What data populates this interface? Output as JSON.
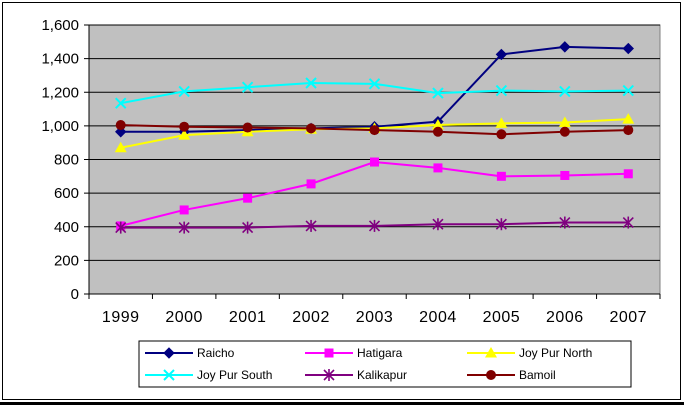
{
  "chart_data": {
    "type": "line",
    "title": "",
    "xlabel": "",
    "ylabel": "",
    "categories": [
      "1999",
      "2000",
      "2001",
      "2002",
      "2003",
      "2004",
      "2005",
      "2006",
      "2007"
    ],
    "ylim": [
      0,
      1600
    ],
    "yticks": [
      0,
      200,
      400,
      600,
      800,
      1000,
      1200,
      1400,
      1600
    ],
    "ytick_labels": [
      "0",
      "200",
      "400",
      "600",
      "800",
      "1,000",
      "1,200",
      "1,400",
      "1,600"
    ],
    "grid": "horizontal",
    "plot_background": "#C0C0C0",
    "legend_position": "bottom",
    "series": [
      {
        "name": "Raicho",
        "color": "#000080",
        "marker": "diamond",
        "values": [
          965,
          965,
          975,
          985,
          995,
          1025,
          1425,
          1470,
          1460
        ]
      },
      {
        "name": "Hatigara",
        "color": "#FF00FF",
        "marker": "square",
        "values": [
          405,
          500,
          570,
          655,
          785,
          750,
          700,
          705,
          715
        ]
      },
      {
        "name": "Joy Pur North",
        "color": "#FFFF00",
        "marker": "triangle",
        "values": [
          870,
          945,
          965,
          980,
          985,
          1005,
          1015,
          1020,
          1040
        ]
      },
      {
        "name": "Joy Pur South",
        "color": "#00FFFF",
        "marker": "x",
        "values": [
          1135,
          1205,
          1230,
          1255,
          1250,
          1195,
          1210,
          1205,
          1210
        ]
      },
      {
        "name": "Kalikapur",
        "color": "#800080",
        "marker": "star",
        "values": [
          395,
          395,
          395,
          405,
          405,
          415,
          415,
          425,
          425
        ]
      },
      {
        "name": "Bamoil",
        "color": "#800000",
        "marker": "circle",
        "values": [
          1005,
          995,
          990,
          985,
          975,
          965,
          950,
          965,
          975
        ]
      }
    ]
  }
}
